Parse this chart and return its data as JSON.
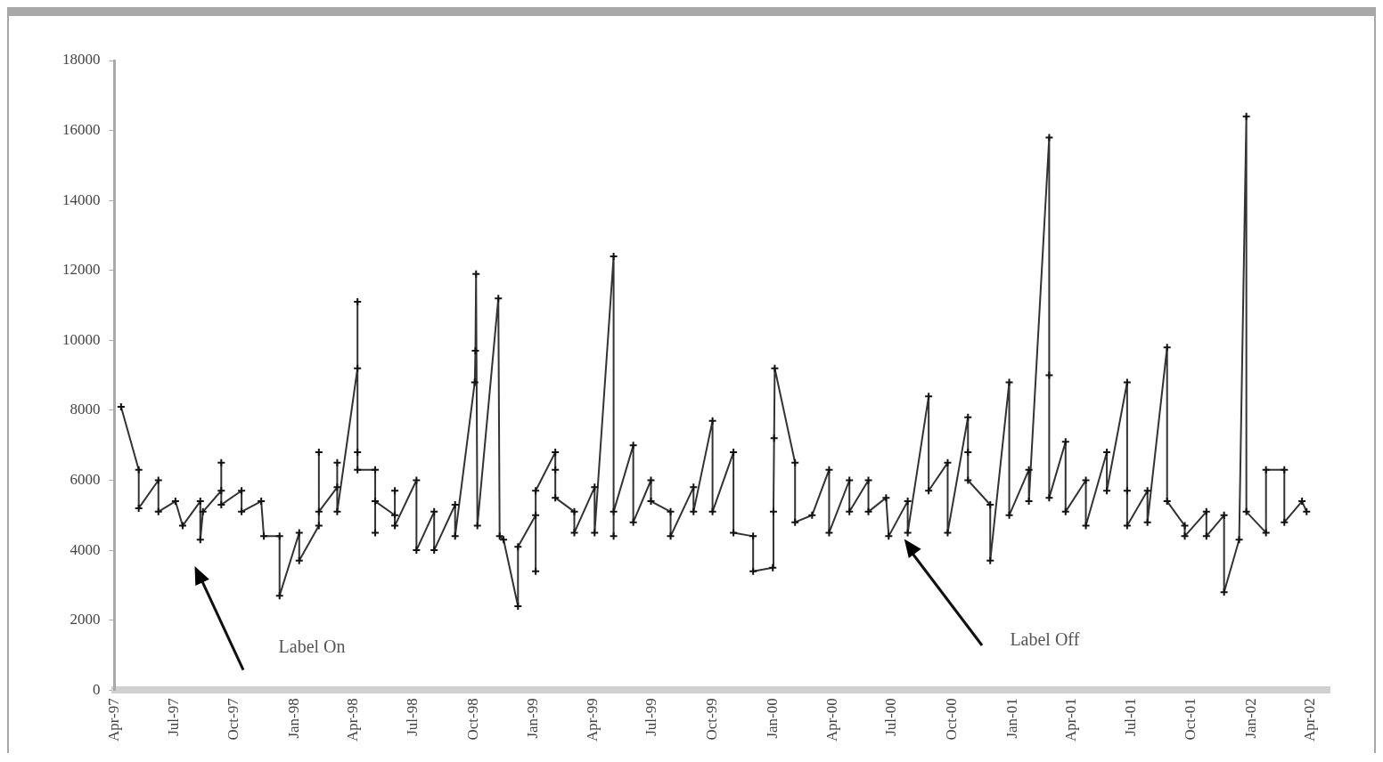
{
  "chart_data": {
    "type": "line",
    "marker": "cross",
    "grid": false,
    "legend": false,
    "xlim": [
      "1997-04-01",
      "2002-04-30"
    ],
    "xticks": [
      {
        "value": "1997-04",
        "label": "Apr-97"
      },
      {
        "value": "1997-07",
        "label": "Jul-97"
      },
      {
        "value": "1997-10",
        "label": "Oct-97"
      },
      {
        "value": "1998-01",
        "label": "Jan-98"
      },
      {
        "value": "1998-04",
        "label": "Apr-98"
      },
      {
        "value": "1998-07",
        "label": "Jul-98"
      },
      {
        "value": "1998-10",
        "label": "Oct-98"
      },
      {
        "value": "1999-01",
        "label": "Jan-99"
      },
      {
        "value": "1999-04",
        "label": "Apr-99"
      },
      {
        "value": "1999-07",
        "label": "Jul-99"
      },
      {
        "value": "1999-10",
        "label": "Oct-99"
      },
      {
        "value": "2000-01",
        "label": "Jan-00"
      },
      {
        "value": "2000-04",
        "label": "Apr-00"
      },
      {
        "value": "2000-07",
        "label": "Jul-00"
      },
      {
        "value": "2000-10",
        "label": "Oct-00"
      },
      {
        "value": "2001-01",
        "label": "Jan-01"
      },
      {
        "value": "2001-04",
        "label": "Apr-01"
      },
      {
        "value": "2001-07",
        "label": "Jul-01"
      },
      {
        "value": "2001-10",
        "label": "Oct-01"
      },
      {
        "value": "2002-01",
        "label": "Jan-02"
      },
      {
        "value": "2002-04",
        "label": "Apr-02"
      }
    ],
    "ylim": [
      0,
      18000
    ],
    "yticks": [
      0,
      2000,
      4000,
      6000,
      8000,
      10000,
      12000,
      14000,
      16000,
      18000
    ],
    "annotations": [
      "Label On",
      "Label Off"
    ],
    "x": [
      "1997-04-11",
      "1997-05-08",
      "1997-05-08",
      "1997-06-07",
      "1997-06-07",
      "1997-07-03",
      "1997-07-14",
      "1997-08-10",
      "1997-08-10",
      "1997-08-14",
      "1997-09-11",
      "1997-09-11",
      "1997-09-11",
      "1997-10-12",
      "1997-10-12",
      "1997-11-11",
      "1997-11-15",
      "1997-12-09",
      "1997-12-09",
      "1998-01-08",
      "1998-01-08",
      "1998-02-07",
      "1998-02-07",
      "1998-02-07",
      "1998-03-07",
      "1998-03-07",
      "1998-03-07",
      "1998-04-07",
      "1998-04-07",
      "1998-04-07",
      "1998-04-07",
      "1998-05-04",
      "1998-05-04",
      "1998-05-04",
      "1998-06-03",
      "1998-06-03",
      "1998-06-03",
      "1998-07-06",
      "1998-07-06",
      "1998-08-02",
      "1998-08-02",
      "1998-09-03",
      "1998-09-03",
      "1998-10-03",
      "1998-10-04",
      "1998-10-05",
      "1998-10-07",
      "1998-11-08",
      "1998-11-10",
      "1998-11-16",
      "1998-12-08",
      "1998-12-08",
      "1999-01-04",
      "1999-01-04",
      "1999-01-04",
      "1999-02-03",
      "1999-02-03",
      "1999-02-03",
      "1999-03-04",
      "1999-03-04",
      "1999-04-04",
      "1999-04-04",
      "1999-05-03",
      "1999-05-03",
      "1999-05-03",
      "1999-06-02",
      "1999-06-02",
      "1999-06-29",
      "1999-06-29",
      "1999-07-29",
      "1999-07-29",
      "1999-09-02",
      "1999-09-02",
      "1999-10-01",
      "1999-10-01",
      "1999-11-02",
      "1999-11-02",
      "1999-12-02",
      "1999-12-02",
      "2000-01-01",
      "2000-01-02",
      "2000-01-03",
      "2000-01-04",
      "2000-02-04",
      "2000-02-04",
      "2000-03-01",
      "2000-03-27",
      "2000-03-27",
      "2000-04-27",
      "2000-04-27",
      "2000-05-26",
      "2000-05-26",
      "2000-06-22",
      "2000-06-26",
      "2000-07-25",
      "2000-07-25",
      "2000-08-26",
      "2000-08-26",
      "2000-09-24",
      "2000-09-24",
      "2000-10-25",
      "2000-10-25",
      "2000-10-25",
      "2000-11-28",
      "2000-11-28",
      "2000-12-27",
      "2000-12-27",
      "2001-01-26",
      "2001-01-26",
      "2001-02-26",
      "2001-02-26",
      "2001-02-26",
      "2001-03-23",
      "2001-03-23",
      "2001-04-23",
      "2001-04-23",
      "2001-05-25",
      "2001-05-25",
      "2001-06-25",
      "2001-06-25",
      "2001-06-25",
      "2001-07-26",
      "2001-07-26",
      "2001-08-25",
      "2001-08-25",
      "2001-09-21",
      "2001-09-21",
      "2001-10-24",
      "2001-10-24",
      "2001-11-20",
      "2001-11-20",
      "2001-12-13",
      "2001-12-24",
      "2001-12-24",
      "2002-01-23",
      "2002-01-23",
      "2002-02-20",
      "2002-02-20",
      "2002-03-19",
      "2002-03-26"
    ],
    "series": [
      {
        "color": "#333333",
        "values": [
          8100,
          6300,
          5200,
          6000,
          5100,
          5400,
          4700,
          5400,
          4300,
          5100,
          5700,
          6500,
          5300,
          5700,
          5100,
          5400,
          4400,
          4400,
          2700,
          4500,
          3700,
          4700,
          6800,
          5100,
          5800,
          6500,
          5100,
          9200,
          11100,
          6800,
          6300,
          6300,
          4500,
          5400,
          5000,
          5700,
          4700,
          6000,
          4000,
          5100,
          4000,
          5300,
          4400,
          8800,
          9700,
          11900,
          4700,
          11200,
          4400,
          4300,
          2400,
          4100,
          5000,
          3400,
          5700,
          6800,
          6300,
          5500,
          5100,
          4500,
          5800,
          4500,
          12400,
          4400,
          5100,
          7000,
          4800,
          6000,
          5400,
          5100,
          4400,
          5800,
          5100,
          7700,
          5100,
          6800,
          4500,
          4400,
          3400,
          3500,
          5100,
          7200,
          9200,
          6500,
          4800,
          5000,
          6300,
          4500,
          6000,
          5100,
          6000,
          5100,
          5500,
          4400,
          5400,
          4500,
          8400,
          5700,
          6500,
          4500,
          7800,
          6800,
          6000,
          5300,
          3700,
          8800,
          5000,
          6300,
          5400,
          15800,
          9000,
          5500,
          7100,
          5100,
          6000,
          4700,
          6800,
          5700,
          8800,
          5700,
          4700,
          5700,
          4800,
          9800,
          5400,
          4700,
          4400,
          5100,
          4400,
          5000,
          2800,
          4300,
          16400,
          5100,
          4500,
          6300,
          6300,
          4800,
          5400,
          5100
        ]
      }
    ]
  }
}
